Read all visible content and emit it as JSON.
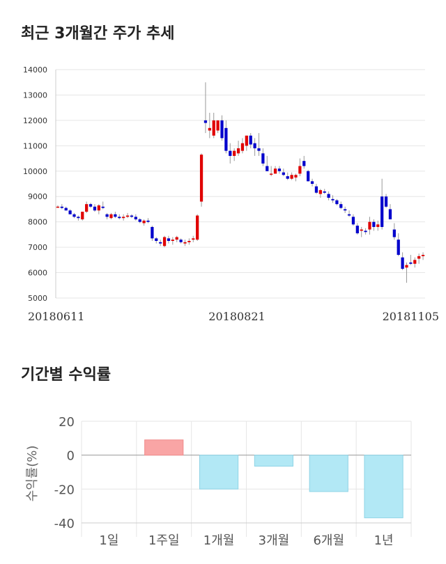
{
  "sections": {
    "candle_title": "최근 3개월간 주가 추세",
    "returns_title": "기간별 수익률"
  },
  "chart_data": [
    {
      "type": "candlestick",
      "ylim": [
        5000,
        14000
      ],
      "y_ticks": [
        "14000",
        "13000",
        "12000",
        "11000",
        "10000",
        "9000",
        "8000",
        "7000",
        "6000",
        "5000"
      ],
      "x_tick_labels": [
        "20180611",
        "20180821",
        "20181105"
      ],
      "up_color": "#e00000",
      "down_color": "#0000cc",
      "grid": true,
      "ohlc": [
        [
          8600,
          8650,
          8550,
          8600
        ],
        [
          8600,
          8700,
          8500,
          8550
        ],
        [
          8550,
          8600,
          8450,
          8450
        ],
        [
          8450,
          8500,
          8300,
          8300
        ],
        [
          8300,
          8350,
          8150,
          8200
        ],
        [
          8200,
          8250,
          8050,
          8150
        ],
        [
          8100,
          8400,
          8050,
          8400
        ],
        [
          8400,
          8800,
          8350,
          8700
        ],
        [
          8700,
          8750,
          8550,
          8600
        ],
        [
          8600,
          8700,
          8400,
          8450
        ],
        [
          8450,
          8700,
          8300,
          8650
        ],
        [
          8600,
          8800,
          8500,
          8550
        ],
        [
          8300,
          8350,
          8100,
          8200
        ],
        [
          8150,
          8350,
          8100,
          8300
        ],
        [
          8300,
          8400,
          8150,
          8200
        ],
        [
          8200,
          8300,
          8100,
          8150
        ],
        [
          8150,
          8300,
          8050,
          8200
        ],
        [
          8200,
          8350,
          8150,
          8250
        ],
        [
          8250,
          8300,
          8150,
          8200
        ],
        [
          8200,
          8300,
          8050,
          8100
        ],
        [
          8100,
          8150,
          7950,
          8000
        ],
        [
          7950,
          8100,
          7850,
          8050
        ],
        [
          8050,
          8150,
          7950,
          8000
        ],
        [
          7800,
          7850,
          7250,
          7350
        ],
        [
          7350,
          7400,
          7150,
          7250
        ],
        [
          7200,
          7300,
          7050,
          7150
        ],
        [
          7050,
          7450,
          7000,
          7400
        ],
        [
          7350,
          7450,
          7150,
          7250
        ],
        [
          7250,
          7400,
          7100,
          7300
        ],
        [
          7300,
          7450,
          7200,
          7400
        ],
        [
          7300,
          7350,
          7150,
          7200
        ],
        [
          7150,
          7300,
          7050,
          7200
        ],
        [
          7200,
          7350,
          7100,
          7250
        ],
        [
          7300,
          7450,
          7200,
          7350
        ],
        [
          7300,
          8300,
          7250,
          8250
        ],
        [
          8800,
          10700,
          8600,
          10650
        ],
        [
          12000,
          13500,
          11500,
          11900
        ],
        [
          11600,
          12300,
          11300,
          11700
        ],
        [
          11400,
          12300,
          11300,
          12000
        ],
        [
          11600,
          12000,
          11500,
          12000
        ],
        [
          12000,
          12200,
          11200,
          11300
        ],
        [
          11700,
          12000,
          10700,
          10800
        ],
        [
          10800,
          11100,
          10300,
          10600
        ],
        [
          10600,
          10900,
          10400,
          10800
        ],
        [
          10700,
          11200,
          10600,
          10900
        ],
        [
          10800,
          11300,
          10700,
          11100
        ],
        [
          11000,
          11400,
          10800,
          11400
        ],
        [
          11400,
          11500,
          10900,
          11050
        ],
        [
          11100,
          11300,
          10600,
          10900
        ],
        [
          10900,
          11500,
          10600,
          10800
        ],
        [
          10700,
          10900,
          10200,
          10300
        ],
        [
          10200,
          10600,
          10000,
          10000
        ],
        [
          9900,
          10200,
          9800,
          9900
        ],
        [
          9900,
          10200,
          9900,
          10100
        ],
        [
          10100,
          10200,
          9900,
          10000
        ],
        [
          9950,
          10100,
          9800,
          9850
        ],
        [
          9800,
          9950,
          9650,
          9700
        ],
        [
          9700,
          9950,
          9650,
          9850
        ],
        [
          9750,
          9900,
          9600,
          9850
        ],
        [
          9900,
          10500,
          9800,
          10200
        ],
        [
          10400,
          10600,
          10100,
          10200
        ],
        [
          10000,
          10050,
          9600,
          9600
        ],
        [
          9600,
          9700,
          9400,
          9500
        ],
        [
          9400,
          9500,
          9100,
          9150
        ],
        [
          9100,
          9300,
          8950,
          9250
        ],
        [
          9200,
          9300,
          9100,
          9150
        ],
        [
          9100,
          9200,
          8850,
          8950
        ],
        [
          8900,
          9050,
          8750,
          8850
        ],
        [
          8850,
          8900,
          8650,
          8700
        ],
        [
          8700,
          8800,
          8500,
          8550
        ],
        [
          8500,
          8600,
          8350,
          8450
        ],
        [
          8300,
          8450,
          8200,
          8250
        ],
        [
          8200,
          8300,
          7850,
          7900
        ],
        [
          7850,
          7950,
          7500,
          7550
        ],
        [
          7650,
          7800,
          7400,
          7700
        ],
        [
          7650,
          7750,
          7500,
          7600
        ],
        [
          7700,
          8200,
          7500,
          8000
        ],
        [
          8000,
          8100,
          7650,
          7800
        ],
        [
          7800,
          8050,
          7650,
          7900
        ],
        [
          9000,
          9700,
          7700,
          7800
        ],
        [
          9000,
          9100,
          8550,
          8600
        ],
        [
          8500,
          8700,
          8100,
          8100
        ],
        [
          7700,
          7950,
          7300,
          7400
        ],
        [
          7300,
          7550,
          6650,
          6700
        ],
        [
          6600,
          6800,
          6100,
          6150
        ],
        [
          6200,
          6400,
          5600,
          6300
        ],
        [
          6400,
          6700,
          6300,
          6350
        ],
        [
          6350,
          6600,
          6200,
          6500
        ],
        [
          6550,
          6750,
          6350,
          6650
        ],
        [
          6650,
          6800,
          6500,
          6700
        ]
      ]
    },
    {
      "type": "bar",
      "ylabel": "수익률(%)",
      "categories": [
        "1일",
        "1주일",
        "1개월",
        "3개월",
        "6개월",
        "1년"
      ],
      "values": [
        0,
        9,
        -20,
        -6.5,
        -21.5,
        -37
      ],
      "ylim": [
        -40,
        20
      ],
      "y_ticks": [
        "20",
        "0",
        "-20",
        "-40"
      ],
      "positive_color": "#f9a5a5",
      "negative_color": "#b2e8f5",
      "grid": true
    }
  ]
}
